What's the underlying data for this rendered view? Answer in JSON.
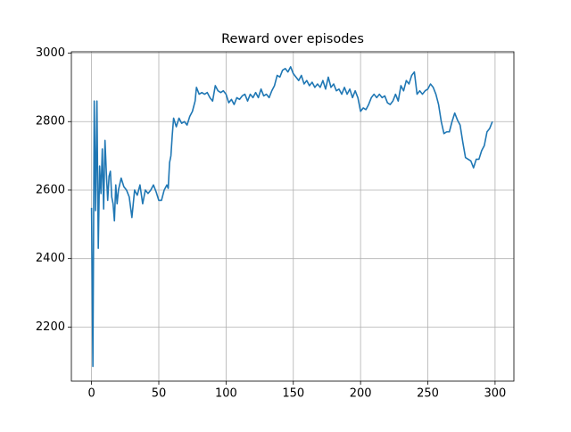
{
  "chart_data": {
    "type": "line",
    "title": "Reward over episodes",
    "color": "#1f77b4",
    "grid": true,
    "xlim": [
      -15,
      314
    ],
    "ylim": [
      2042,
      3004
    ],
    "xticks": [
      0,
      50,
      100,
      150,
      200,
      250,
      300
    ],
    "yticks": [
      2200,
      2400,
      2600,
      2800,
      3000
    ],
    "x": [
      0,
      1,
      2,
      3,
      4,
      5,
      6,
      7,
      8,
      9,
      10,
      11,
      12,
      13,
      14,
      15,
      16,
      17,
      18,
      19,
      20,
      22,
      24,
      26,
      28,
      30,
      32,
      34,
      36,
      38,
      40,
      42,
      44,
      46,
      48,
      50,
      52,
      54,
      56,
      57,
      58,
      59,
      60,
      61,
      63,
      65,
      67,
      69,
      71,
      73,
      75,
      77,
      78,
      80,
      82,
      84,
      86,
      88,
      90,
      92,
      94,
      96,
      98,
      100,
      102,
      104,
      106,
      108,
      110,
      112,
      114,
      116,
      118,
      120,
      122,
      124,
      126,
      128,
      130,
      132,
      134,
      136,
      138,
      140,
      142,
      144,
      146,
      148,
      150,
      152,
      154,
      156,
      158,
      160,
      162,
      164,
      166,
      168,
      170,
      172,
      174,
      176,
      178,
      180,
      182,
      184,
      186,
      188,
      190,
      192,
      194,
      196,
      198,
      200,
      202,
      204,
      206,
      208,
      210,
      212,
      214,
      216,
      218,
      220,
      222,
      224,
      226,
      228,
      230,
      232,
      234,
      236,
      238,
      240,
      242,
      244,
      246,
      248,
      250,
      252,
      254,
      256,
      258,
      260,
      262,
      264,
      266,
      268,
      270,
      272,
      274,
      276,
      278,
      280,
      282,
      284,
      286,
      288,
      290,
      292,
      294,
      296,
      298
    ],
    "values": [
      2548,
      2085,
      2860,
      2540,
      2860,
      2430,
      2670,
      2590,
      2720,
      2545,
      2745,
      2650,
      2570,
      2640,
      2655,
      2580,
      2560,
      2510,
      2615,
      2560,
      2600,
      2635,
      2610,
      2600,
      2580,
      2520,
      2600,
      2585,
      2615,
      2560,
      2600,
      2590,
      2600,
      2615,
      2595,
      2570,
      2570,
      2600,
      2615,
      2605,
      2680,
      2700,
      2760,
      2810,
      2785,
      2810,
      2795,
      2800,
      2790,
      2815,
      2830,
      2860,
      2900,
      2880,
      2885,
      2880,
      2885,
      2870,
      2860,
      2905,
      2890,
      2885,
      2890,
      2880,
      2855,
      2865,
      2850,
      2870,
      2865,
      2875,
      2880,
      2860,
      2880,
      2870,
      2885,
      2870,
      2895,
      2875,
      2880,
      2870,
      2890,
      2905,
      2935,
      2930,
      2950,
      2955,
      2945,
      2960,
      2940,
      2930,
      2920,
      2935,
      2910,
      2920,
      2905,
      2915,
      2900,
      2910,
      2900,
      2920,
      2895,
      2930,
      2900,
      2910,
      2890,
      2895,
      2880,
      2900,
      2880,
      2895,
      2870,
      2890,
      2870,
      2830,
      2840,
      2835,
      2850,
      2870,
      2880,
      2870,
      2880,
      2870,
      2875,
      2855,
      2850,
      2860,
      2880,
      2860,
      2905,
      2890,
      2920,
      2910,
      2935,
      2945,
      2880,
      2890,
      2880,
      2890,
      2895,
      2910,
      2900,
      2880,
      2850,
      2800,
      2765,
      2770,
      2770,
      2800,
      2825,
      2805,
      2790,
      2740,
      2695,
      2690,
      2685,
      2665,
      2690,
      2690,
      2715,
      2730,
      2770,
      2780,
      2800
    ]
  }
}
